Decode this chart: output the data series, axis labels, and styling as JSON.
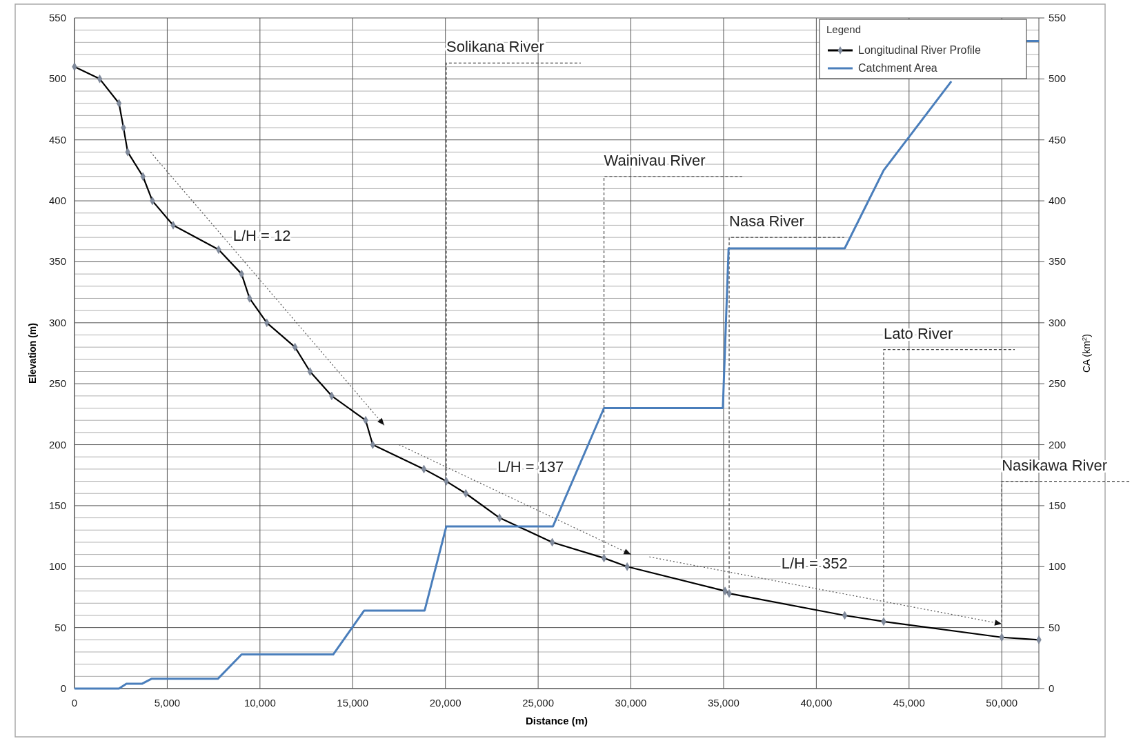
{
  "chart_data": {
    "type": "line",
    "xlabel": "Distance (m)",
    "ylabel": "Elevation (m)",
    "y2label": "CA (km$^{2}$)",
    "legend_title": "Legend",
    "xlim": [
      0,
      52000
    ],
    "xticks": [
      {
        "value": 0,
        "label": "0"
      },
      {
        "value": 5000,
        "label": "5,000"
      },
      {
        "value": 10000,
        "label": "10,000"
      },
      {
        "value": 15000,
        "label": "15,000"
      },
      {
        "value": 20000,
        "label": "20,000"
      },
      {
        "value": 25000,
        "label": "25,000"
      },
      {
        "value": 30000,
        "label": "30,000"
      },
      {
        "value": 35000,
        "label": "35,000"
      },
      {
        "value": 40000,
        "label": "40,000"
      },
      {
        "value": 45000,
        "label": "45,000"
      },
      {
        "value": 50000,
        "label": "50,000"
      }
    ],
    "ylim": [
      0,
      550
    ],
    "yticks": [
      0,
      50,
      100,
      150,
      200,
      250,
      300,
      350,
      400,
      450,
      500,
      550
    ],
    "y2lim": [
      0,
      550
    ],
    "y2ticks": [
      0,
      50,
      100,
      150,
      200,
      250,
      300,
      350,
      400,
      450,
      500,
      550
    ],
    "grid": true,
    "legend": "top right",
    "series": [
      {
        "name": "Longitudinal River Profile",
        "color": "#000000",
        "marker": "diamond",
        "x": [
          0,
          1360,
          2400,
          2640,
          2870,
          3690,
          4200,
          5320,
          7770,
          9010,
          9440,
          10370,
          11890,
          12700,
          13870,
          15700,
          16080,
          18840,
          20050,
          21100,
          22920,
          25760,
          28550,
          29800,
          35080,
          35300,
          41530,
          43630,
          50000,
          52000
        ],
        "values": [
          510,
          500,
          480,
          460,
          440,
          420,
          400,
          380,
          360,
          340,
          320,
          300,
          280,
          260,
          240,
          220,
          200,
          180,
          170,
          160,
          140,
          120,
          107,
          100,
          80,
          78,
          60,
          55,
          42,
          40
        ]
      },
      {
        "name": "Catchment Area",
        "color": "#4a7ebb",
        "axis": "y2",
        "x": [
          0,
          2400,
          2800,
          3650,
          4150,
          7730,
          9010,
          13950,
          15620,
          18880,
          20050,
          25800,
          28550,
          34960,
          35270,
          41530,
          43630,
          47280,
          49000,
          51300,
          52000
        ],
        "values": [
          0,
          0,
          4,
          4,
          8,
          8,
          28,
          28,
          64,
          64,
          133,
          133,
          230,
          230,
          361,
          361,
          425,
          498,
          null,
          531,
          531
        ]
      }
    ],
    "annotations": [
      {
        "text": "Solikana River",
        "x": 20050,
        "y": 170
      },
      {
        "text": "Wainivau River",
        "x": 28550,
        "y": 107
      },
      {
        "text": "Nasa River",
        "x": 35300,
        "y": 78
      },
      {
        "text": "Lato River",
        "x": 43630,
        "y": 55
      },
      {
        "text": "Nasikawa River",
        "x": 50000,
        "y": 42
      },
      "L/H = 12",
      "L/H = 137",
      "L/H = 352"
    ]
  }
}
